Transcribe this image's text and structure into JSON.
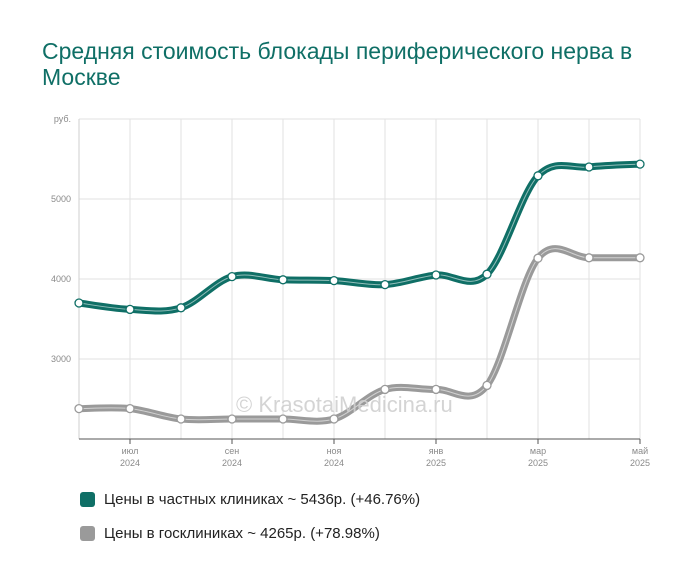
{
  "chart_data": {
    "type": "line",
    "title": "Средняя стоимость блокады периферического нерва в Москве",
    "ylabel": "руб.",
    "xlabel": "",
    "ylim": [
      2000,
      6000
    ],
    "grid": true,
    "legend_position": "bottom",
    "x_ticks": [
      {
        "month": "июл",
        "year": "2024"
      },
      {
        "month": "сен",
        "year": "2024"
      },
      {
        "month": "ноя",
        "year": "2024"
      },
      {
        "month": "янв",
        "year": "2025"
      },
      {
        "month": "мар",
        "year": "2025"
      },
      {
        "month": "май",
        "year": "2025"
      }
    ],
    "y_ticks": [
      "3000",
      "4000",
      "5000"
    ],
    "x": [
      "2024-06",
      "2024-07",
      "2024-08",
      "2024-09",
      "2024-10",
      "2024-11",
      "2024-12",
      "2025-01",
      "2025-02",
      "2025-03",
      "2025-04",
      "2025-05"
    ],
    "series": [
      {
        "name": "Цены в частных клиниках ~ 5436р. (+46.76%)",
        "color": "#0f6f66",
        "values": [
          3700,
          3620,
          3640,
          4030,
          3990,
          3980,
          3930,
          4050,
          4060,
          5290,
          5400,
          5436
        ]
      },
      {
        "name": "Цены в госклиниках ~ 4265р. (+78.98%)",
        "color": "#9a9a9a",
        "values": [
          2380,
          2380,
          2250,
          2250,
          2250,
          2250,
          2620,
          2620,
          2670,
          4260,
          4265,
          4265
        ]
      }
    ]
  },
  "watermark": "© KrasotaiMedicina.ru"
}
